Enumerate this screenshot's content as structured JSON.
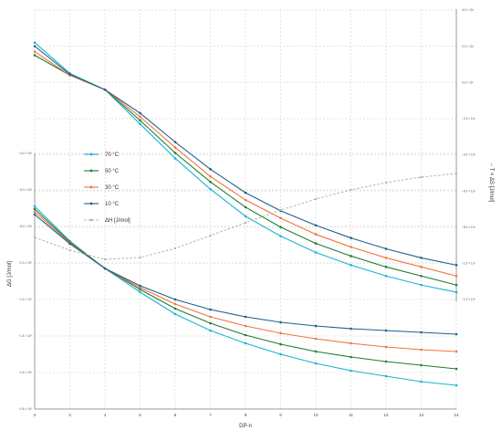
{
  "chart_data": {
    "type": "line",
    "xlabel": "DP-n",
    "ylabel_left": "ΔG [J/mol]",
    "ylabel_right": "− T × ΔS [J/mol]",
    "x": [
      2,
      3,
      4,
      5,
      6,
      7,
      8,
      9,
      10,
      11,
      12,
      13,
      14
    ],
    "left_axis": {
      "ylim": [
        -18000,
        -4000
      ],
      "ticks": [
        -4000,
        -6000,
        -8000,
        -10000,
        -12000,
        -14000,
        -16000,
        -18000
      ],
      "tick_labels": [
        "−4.0 × 10³",
        "−6.0 × 10³",
        "−8.0 × 10³",
        "−1.0 × 10⁴",
        "−1.2 × 10⁴",
        "−1.4 × 10⁴",
        "−1.6 × 10⁴",
        "−1.8 × 10⁴"
      ]
    },
    "right_axis": {
      "ylim": [
        -14000,
        4000
      ],
      "ticks": [
        4000,
        2000,
        0,
        -2000,
        -4000,
        -6000,
        -8000,
        -10000,
        -12000
      ],
      "tick_labels": [
        "4.0 × 10³",
        "2.0 × 10³",
        "0.0 × 10⁰",
        "−2.0 × 10³",
        "−4.0 × 10³",
        "−6.0 × 10³",
        "−8.0 × 10³",
        "−1.0 × 10⁴",
        "−1.2 × 10⁴"
      ]
    },
    "legend": [
      "70 °C",
      "50 °C",
      "30 °C",
      "10 °C",
      "ΔH [J/mol]"
    ],
    "legend_position": "left-center",
    "grid": true,
    "series": [
      {
        "name": "70 °C",
        "color": "#1ab3d3",
        "axis": "left",
        "values": [
          -6900,
          -8800,
          -10300,
          -11600,
          -12800,
          -13700,
          -14400,
          -15000,
          -15500,
          -15900,
          -16200,
          -16500,
          -16700
        ]
      },
      {
        "name": "50 °C",
        "color": "#1e7d34",
        "axis": "left",
        "values": [
          -7050,
          -8850,
          -10300,
          -11450,
          -12500,
          -13300,
          -13950,
          -14450,
          -14850,
          -15150,
          -15400,
          -15600,
          -15800
        ]
      },
      {
        "name": "30 °C",
        "color": "#f0753d",
        "axis": "left",
        "values": [
          -7200,
          -8900,
          -10300,
          -11350,
          -12250,
          -12950,
          -13450,
          -13850,
          -14150,
          -14400,
          -14600,
          -14750,
          -14850
        ]
      },
      {
        "name": "10 °C",
        "color": "#1f5f8b",
        "axis": "left",
        "values": [
          -7350,
          -8950,
          -10300,
          -11250,
          -12000,
          -12550,
          -12950,
          -13250,
          -13450,
          -13600,
          -13700,
          -13800,
          -13900
        ]
      },
      {
        "name": "70 °C",
        "color": "#1ab3d3",
        "axis": "right",
        "values": [
          2200,
          500,
          -400,
          -2300,
          -4200,
          -5900,
          -7400,
          -8500,
          -9400,
          -10100,
          -10700,
          -11200,
          -11600
        ]
      },
      {
        "name": "50 °C",
        "color": "#1e7d34",
        "axis": "right",
        "values": [
          1500,
          400,
          -400,
          -2100,
          -3900,
          -5500,
          -6900,
          -8000,
          -8900,
          -9600,
          -10200,
          -10700,
          -11200
        ]
      },
      {
        "name": "30 °C",
        "color": "#f0753d",
        "axis": "right",
        "values": [
          1700,
          400,
          -400,
          -1900,
          -3600,
          -5200,
          -6500,
          -7500,
          -8400,
          -9100,
          -9700,
          -10200,
          -10700
        ]
      },
      {
        "name": "10 °C",
        "color": "#1f5f8b",
        "axis": "right",
        "values": [
          2000,
          450,
          -400,
          -1700,
          -3300,
          -4800,
          -6100,
          -7100,
          -7900,
          -8600,
          -9200,
          -9700,
          -10100
        ]
      },
      {
        "name": "ΔH [J/mol]",
        "color": "#b0b0b0",
        "axis": "left",
        "dashed": true,
        "values": [
          -8600,
          -9300,
          -9800,
          -9700,
          -9200,
          -8500,
          -7800,
          -7100,
          -6500,
          -6000,
          -5600,
          -5300,
          -5100
        ]
      }
    ]
  }
}
